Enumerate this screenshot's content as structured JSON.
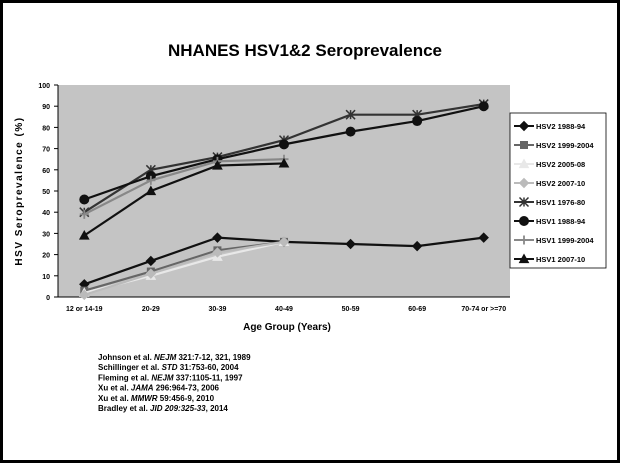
{
  "chart_data": {
    "type": "line",
    "title": "NHANES HSV1&2 Seroprevalence",
    "x_label": "Age Group (Years)",
    "y_label": "HSV Seroprevalence (%)",
    "categories": [
      "12 or 14-19",
      "20-29",
      "30-39",
      "40-49",
      "50-59",
      "60-69",
      "70-74 or >=70"
    ],
    "ylim": [
      0,
      100
    ],
    "yticks": [
      0,
      10,
      20,
      30,
      40,
      50,
      60,
      70,
      80,
      90,
      100
    ],
    "legend": "right",
    "series": [
      {
        "name": "HSV2 1988-94",
        "color": "#111111",
        "marker": "diamond",
        "values": [
          6,
          17,
          28,
          26,
          25,
          24,
          28
        ]
      },
      {
        "name": "HSV2 1999-2004",
        "color": "#666666",
        "marker": "square",
        "values": [
          3,
          12,
          22,
          26,
          null,
          null,
          null
        ]
      },
      {
        "name": "HSV2 2005-08",
        "color": "#e8e8e8",
        "marker": "triangle",
        "values": [
          2,
          10,
          19,
          26,
          null,
          null,
          null
        ]
      },
      {
        "name": "HSV2 2007-10",
        "color": "#bbbbbb",
        "marker": "diamond",
        "values": [
          1,
          11,
          21,
          26,
          null,
          null,
          null
        ]
      },
      {
        "name": "HSV1 1976-80",
        "color": "#333333",
        "marker": "star",
        "values": [
          40,
          60,
          66,
          74,
          86,
          86,
          91
        ]
      },
      {
        "name": "HSV1 1988-94",
        "color": "#111111",
        "marker": "circle",
        "values": [
          46,
          57,
          65,
          72,
          78,
          83,
          90
        ]
      },
      {
        "name": "HSV1 1999-2004",
        "color": "#888888",
        "marker": "plus",
        "values": [
          39,
          55,
          64,
          65,
          null,
          null,
          null
        ]
      },
      {
        "name": "HSV1 2007-10",
        "color": "#111111",
        "marker": "triangle",
        "values": [
          29,
          50,
          62,
          63,
          null,
          null,
          null
        ]
      }
    ]
  },
  "references": [
    [
      "Johnson et al. ",
      "NEJM",
      " 321:7-12, 321, 1989"
    ],
    [
      "Schillinger et al. ",
      "STD",
      " 31:753-60, 2004"
    ],
    [
      "Fleming et al. ",
      "NEJM",
      " 337:1105-11, 1997"
    ],
    [
      "Xu et al. ",
      "JAMA",
      " 296:964-73, 2006"
    ],
    [
      "Xu et al. ",
      "MMWR",
      " 59:456-9, 2010"
    ],
    [
      "Bradley et al. ",
      "JID 209:325-33",
      ", 2014"
    ]
  ]
}
